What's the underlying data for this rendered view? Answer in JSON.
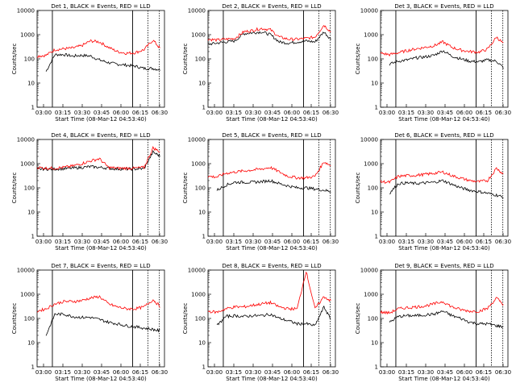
{
  "figure": {
    "ylabel": "Counts/sec",
    "xlabel": "Start Time (08-Mar-12 04:53:40)",
    "x_ticks": [
      "03:00",
      "03:15",
      "03:30",
      "03:45",
      "06:00",
      "06:15",
      "06:30"
    ],
    "y_ticks": [
      "1",
      "10",
      "100",
      "1000",
      "10000"
    ],
    "series_colors": {
      "events": "#000000",
      "lld": "#ff0000"
    }
  },
  "chart_data": [
    {
      "type": "line",
      "title": "Det 1, BLACK = Events, RED = LLD",
      "ylim": [
        1,
        10000
      ],
      "yscale": "log",
      "x": [
        0.0,
        0.07,
        0.14,
        0.21,
        0.28,
        0.35,
        0.42,
        0.49,
        0.56,
        0.63,
        0.7,
        0.77,
        0.84,
        0.91,
        0.97
      ],
      "series": [
        {
          "name": "Events",
          "values": [
            30,
            30,
            150,
            150,
            130,
            140,
            130,
            90,
            70,
            60,
            55,
            50,
            40,
            40,
            35
          ],
          "start": 0.07,
          "end": 1.0
        },
        {
          "name": "LLD",
          "values": [
            130,
            140,
            240,
            260,
            280,
            350,
            550,
            500,
            300,
            200,
            170,
            180,
            240,
            600,
            250
          ],
          "start": 0.0,
          "end": 1.0
        }
      ]
    },
    {
      "type": "line",
      "title": "Det 2, BLACK = Events, RED = LLD",
      "ylim": [
        1,
        10000
      ],
      "yscale": "log",
      "x": [
        0.0,
        0.07,
        0.14,
        0.21,
        0.28,
        0.35,
        0.42,
        0.49,
        0.56,
        0.63,
        0.7,
        0.77,
        0.84,
        0.91,
        0.97
      ],
      "series": [
        {
          "name": "Events",
          "values": [
            400,
            450,
            500,
            550,
            1100,
            1200,
            1300,
            1000,
            500,
            450,
            500,
            550,
            500,
            1300,
            600
          ],
          "start": 0.0,
          "end": 1.0
        },
        {
          "name": "LLD",
          "values": [
            650,
            600,
            650,
            700,
            1300,
            1500,
            1800,
            1600,
            800,
            650,
            650,
            700,
            800,
            2500,
            1200
          ],
          "start": 0.0,
          "end": 1.0
        }
      ]
    },
    {
      "type": "line",
      "title": "Det 3, BLACK = Events, RED = LLD",
      "ylim": [
        1,
        10000
      ],
      "yscale": "log",
      "x": [
        0.0,
        0.07,
        0.14,
        0.21,
        0.28,
        0.35,
        0.42,
        0.49,
        0.56,
        0.63,
        0.7,
        0.77,
        0.84,
        0.91,
        0.97
      ],
      "series": [
        {
          "name": "Events",
          "values": [
            40,
            60,
            80,
            90,
            110,
            120,
            140,
            220,
            130,
            100,
            80,
            75,
            90,
            80,
            40
          ],
          "start": 0.07,
          "end": 1.0
        },
        {
          "name": "LLD",
          "values": [
            170,
            150,
            180,
            220,
            260,
            300,
            350,
            500,
            300,
            230,
            200,
            190,
            250,
            800,
            400
          ],
          "start": 0.0,
          "end": 1.0
        }
      ]
    },
    {
      "type": "line",
      "title": "Det 4, BLACK = Events, RED = LLD",
      "ylim": [
        1,
        10000
      ],
      "yscale": "log",
      "x": [
        0.0,
        0.07,
        0.14,
        0.21,
        0.28,
        0.35,
        0.42,
        0.49,
        0.56,
        0.63,
        0.7,
        0.77,
        0.84,
        0.91,
        0.97
      ],
      "series": [
        {
          "name": "Events",
          "values": [
            600,
            600,
            600,
            620,
            650,
            700,
            750,
            700,
            650,
            600,
            600,
            600,
            620,
            3000,
            2000
          ],
          "start": 0.0,
          "end": 1.0
        },
        {
          "name": "LLD",
          "values": [
            700,
            650,
            650,
            700,
            800,
            1000,
            1300,
            1600,
            700,
            650,
            650,
            650,
            700,
            4500,
            3000
          ],
          "start": 0.0,
          "end": 1.0
        }
      ]
    },
    {
      "type": "line",
      "title": "Det 5, BLACK = Events, RED = LLD",
      "ylim": [
        1,
        10000
      ],
      "yscale": "log",
      "x": [
        0.0,
        0.07,
        0.14,
        0.21,
        0.28,
        0.35,
        0.42,
        0.49,
        0.56,
        0.63,
        0.7,
        0.77,
        0.84,
        0.91,
        0.97
      ],
      "series": [
        {
          "name": "Events",
          "values": [
            60,
            80,
            130,
            170,
            170,
            170,
            180,
            200,
            150,
            120,
            100,
            100,
            90,
            80,
            70
          ],
          "start": 0.07,
          "end": 1.0
        },
        {
          "name": "LLD",
          "values": [
            300,
            280,
            400,
            450,
            500,
            550,
            600,
            700,
            450,
            300,
            260,
            260,
            300,
            1200,
            800
          ],
          "start": 0.0,
          "end": 1.0
        }
      ]
    },
    {
      "type": "line",
      "title": "Det 6, BLACK = Events, RED = LLD",
      "ylim": [
        1,
        10000
      ],
      "yscale": "log",
      "x": [
        0.0,
        0.07,
        0.14,
        0.21,
        0.28,
        0.35,
        0.42,
        0.49,
        0.56,
        0.63,
        0.7,
        0.77,
        0.84,
        0.91,
        0.97
      ],
      "series": [
        {
          "name": "Events",
          "values": [
            30,
            60,
            150,
            160,
            150,
            160,
            170,
            200,
            140,
            100,
            80,
            70,
            60,
            50,
            40
          ],
          "start": 0.07,
          "end": 1.0
        },
        {
          "name": "LLD",
          "values": [
            180,
            170,
            300,
            320,
            330,
            360,
            400,
            450,
            320,
            250,
            200,
            180,
            200,
            650,
            350
          ],
          "start": 0.0,
          "end": 1.0
        }
      ]
    },
    {
      "type": "line",
      "title": "Det 7, BLACK = Events, RED = LLD",
      "ylim": [
        1,
        10000
      ],
      "yscale": "log",
      "x": [
        0.0,
        0.07,
        0.14,
        0.21,
        0.28,
        0.35,
        0.42,
        0.49,
        0.56,
        0.63,
        0.7,
        0.77,
        0.84,
        0.91,
        0.97
      ],
      "series": [
        {
          "name": "Events",
          "values": [
            15,
            20,
            150,
            150,
            120,
            110,
            110,
            90,
            70,
            60,
            50,
            45,
            40,
            35,
            30
          ],
          "start": 0.07,
          "end": 1.0
        },
        {
          "name": "LLD",
          "values": [
            200,
            250,
            400,
            500,
            500,
            550,
            700,
            800,
            400,
            300,
            250,
            250,
            300,
            600,
            300
          ],
          "start": 0.0,
          "end": 1.0
        }
      ]
    },
    {
      "type": "line",
      "title": "Det 8, BLACK = Events, RED = LLD",
      "ylim": [
        1,
        10000
      ],
      "yscale": "log",
      "x": [
        0.0,
        0.07,
        0.14,
        0.21,
        0.28,
        0.35,
        0.42,
        0.49,
        0.56,
        0.63,
        0.7,
        0.77,
        0.84,
        0.91,
        0.97
      ],
      "series": [
        {
          "name": "Events",
          "values": [
            30,
            50,
            120,
            130,
            120,
            130,
            130,
            150,
            100,
            80,
            60,
            60,
            50,
            300,
            80
          ],
          "start": 0.07,
          "end": 1.0
        },
        {
          "name": "LLD",
          "values": [
            200,
            180,
            250,
            300,
            300,
            350,
            400,
            450,
            300,
            250,
            250,
            9000,
            250,
            800,
            500
          ],
          "start": 0.0,
          "end": 1.0
        }
      ]
    },
    {
      "type": "line",
      "title": "Det 9, BLACK = Events, RED = LLD",
      "ylim": [
        1,
        10000
      ],
      "yscale": "log",
      "x": [
        0.0,
        0.07,
        0.14,
        0.21,
        0.28,
        0.35,
        0.42,
        0.49,
        0.56,
        0.63,
        0.7,
        0.77,
        0.84,
        0.91,
        0.97
      ],
      "series": [
        {
          "name": "Events",
          "values": [
            40,
            70,
            120,
            130,
            130,
            140,
            150,
            200,
            130,
            100,
            70,
            60,
            60,
            50,
            45
          ],
          "start": 0.07,
          "end": 1.0
        },
        {
          "name": "LLD",
          "values": [
            180,
            170,
            250,
            280,
            300,
            330,
            400,
            500,
            300,
            230,
            200,
            200,
            260,
            700,
            350
          ],
          "start": 0.0,
          "end": 1.0
        }
      ]
    }
  ]
}
